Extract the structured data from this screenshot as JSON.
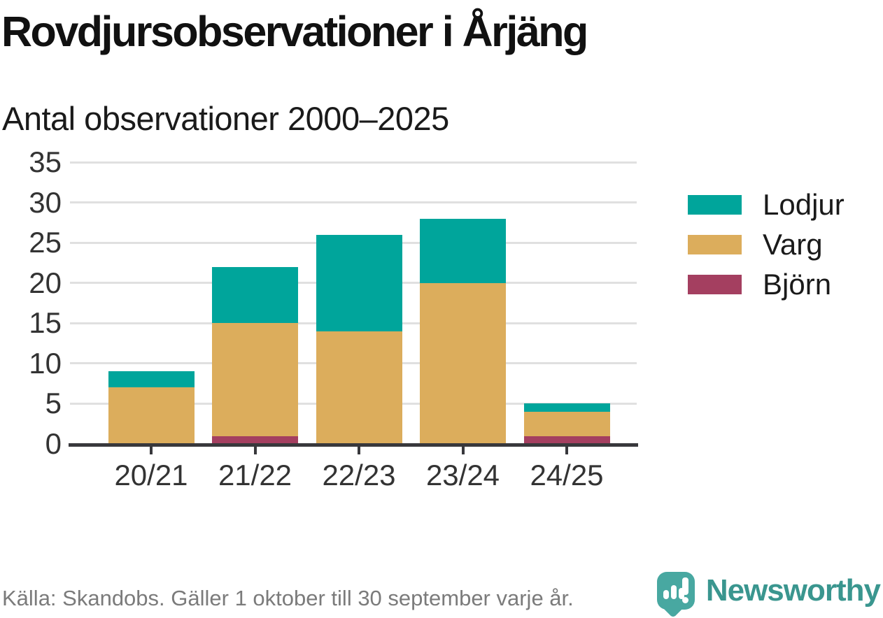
{
  "header": {
    "title": "Rovdjursobservationer i Årjäng",
    "subtitle": "Antal observationer 2000–2025"
  },
  "chart_data": {
    "type": "bar",
    "stacked": true,
    "title": "Rovdjursobservationer i Årjäng",
    "subtitle": "Antal observationer 2000–2025",
    "categories": [
      "20/21",
      "21/22",
      "22/23",
      "23/24",
      "24/25"
    ],
    "series": [
      {
        "name": "Lodjur",
        "color": "#00a59b",
        "values": [
          2,
          7,
          12,
          8,
          1
        ]
      },
      {
        "name": "Varg",
        "color": "#dcad5c",
        "values": [
          7,
          14,
          14,
          20,
          3
        ]
      },
      {
        "name": "Björn",
        "color": "#a43f60",
        "values": [
          0,
          1,
          0,
          0,
          1
        ]
      }
    ],
    "stack_order_bottom_to_top": [
      "Björn",
      "Varg",
      "Lodjur"
    ],
    "totals": [
      9,
      22,
      26,
      28,
      5
    ],
    "xlabel": "",
    "ylabel": "",
    "ylim": [
      0,
      35
    ],
    "yticks": [
      0,
      5,
      10,
      15,
      20,
      25,
      30,
      35
    ],
    "grid": "horizontal",
    "legend_position": "right"
  },
  "footer": {
    "source": "Källa: Skandobs. Gäller 1 oktober till 30 september varje år.",
    "brand": "Newsworthy"
  },
  "colors": {
    "axis": "#38383c",
    "grid": "#e0e0e0",
    "tick_text": "#333333",
    "muted_text": "#7b7b7b",
    "brand_teal": "#3a968f",
    "bubble_teal": "#48a8a1"
  }
}
